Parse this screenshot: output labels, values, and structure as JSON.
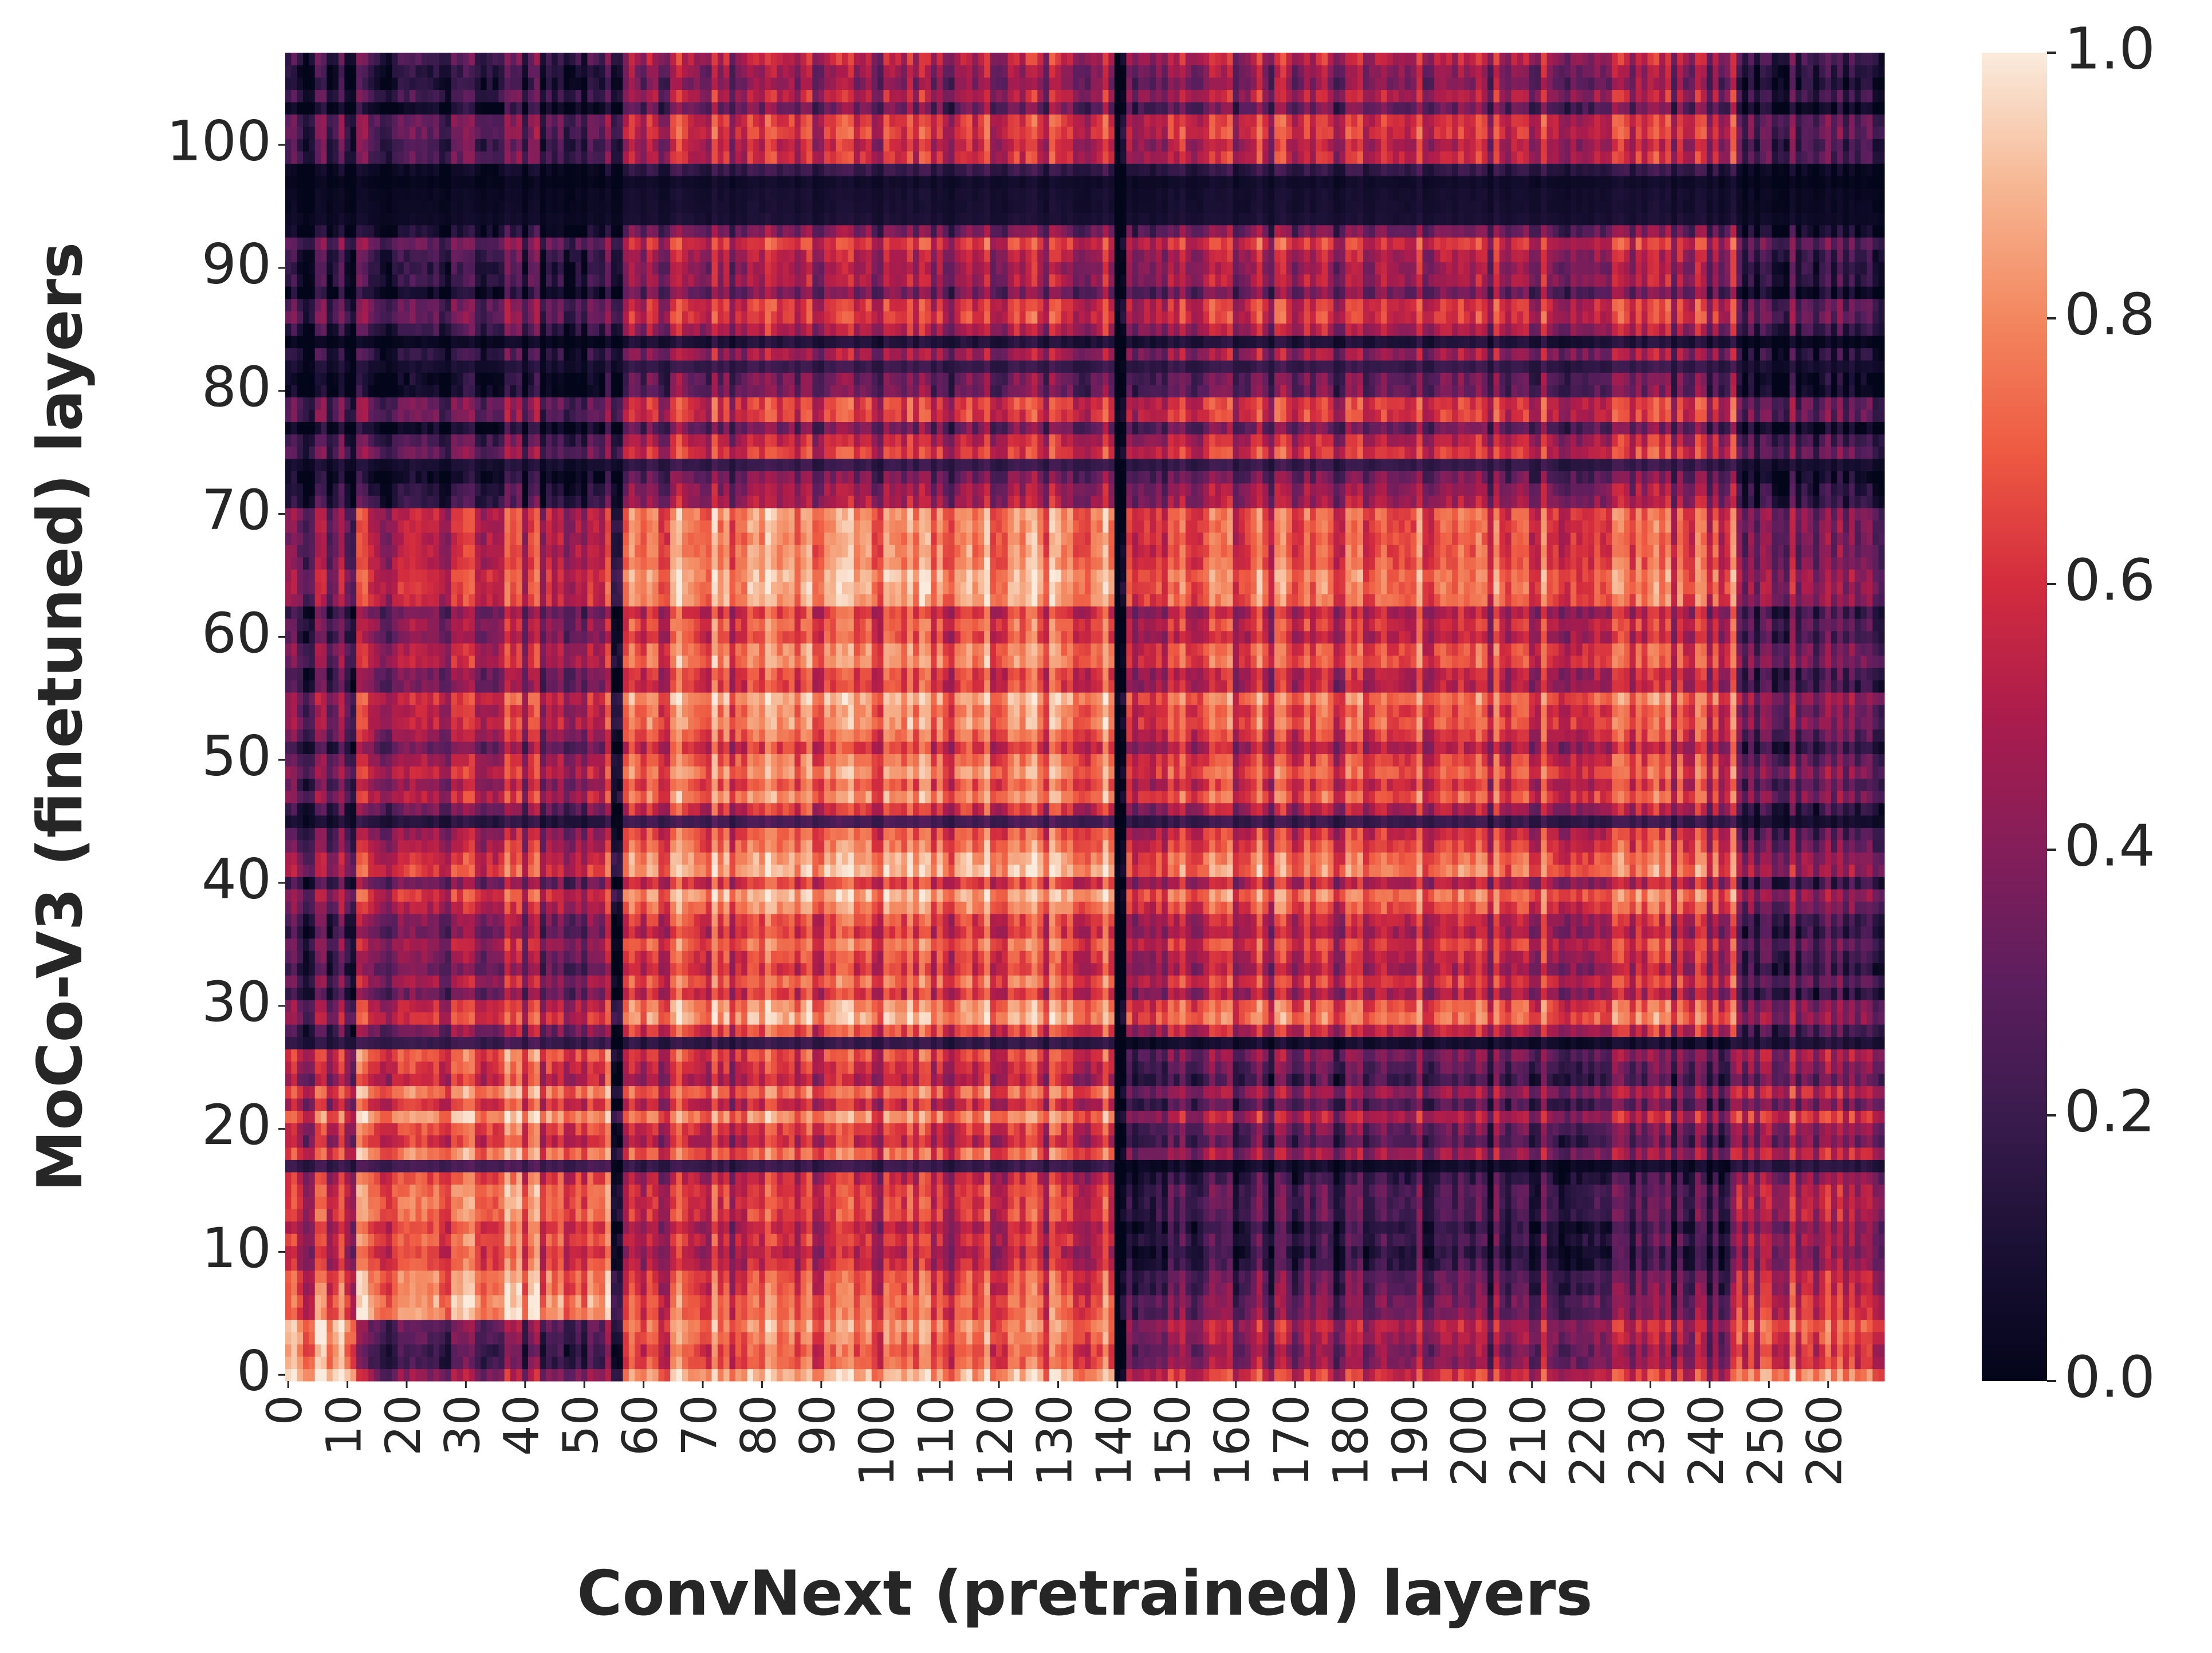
{
  "chart_data": {
    "type": "heatmap",
    "title": "",
    "xlabel": "ConvNext (pretrained) layers",
    "ylabel": "MoCo-V3 (finetuned) layers",
    "x_count": 270,
    "y_count": 108,
    "x_ticks": [
      0,
      10,
      20,
      30,
      40,
      50,
      60,
      70,
      80,
      90,
      100,
      110,
      120,
      130,
      140,
      150,
      160,
      170,
      180,
      190,
      200,
      210,
      220,
      230,
      240,
      250,
      260
    ],
    "y_ticks": [
      0,
      10,
      20,
      30,
      40,
      50,
      60,
      70,
      80,
      90,
      100
    ],
    "colorbar": {
      "min": 0.0,
      "max": 1.0,
      "ticks": [
        "0.0",
        "0.2",
        "0.4",
        "0.6",
        "0.8",
        "1.0"
      ],
      "colormap": "rocket"
    },
    "value_range": [
      0.0,
      1.0
    ],
    "pattern": {
      "column_regions": [
        {
          "x_range": [
            0,
            12
          ],
          "rows_0_4": 0.85,
          "rows_5_27": 0.55,
          "rows_28_70": 0.3,
          "rows_71_107": 0.12
        },
        {
          "x_range": [
            12,
            55
          ],
          "rows_0_4": 0.3,
          "rows_5_27": 0.72,
          "rows_28_70": 0.5,
          "rows_71_107": 0.2
        },
        {
          "x_range": [
            55,
            57
          ],
          "all_rows": 0.05
        },
        {
          "x_range": [
            57,
            140
          ],
          "rows_0_4": 0.72,
          "rows_5_17": 0.55,
          "rows_18_27": 0.62,
          "rows_28_70": 0.72,
          "rows_71_107": 0.45
        },
        {
          "x_range": [
            140,
            142
          ],
          "all_rows": 0.05
        },
        {
          "x_range": [
            142,
            245
          ],
          "rows_0_4": 0.45,
          "rows_5_17": 0.2,
          "rows_18_27": 0.35,
          "rows_28_70": 0.62,
          "rows_71_107": 0.45
        },
        {
          "x_range": [
            245,
            270
          ],
          "rows_0_4": 0.7,
          "rows_5_17": 0.5,
          "rows_28_70": 0.35,
          "rows_71_107": 0.2
        }
      ],
      "dark_rows": [
        17,
        27,
        45,
        74,
        82,
        84,
        94,
        95,
        96,
        97
      ]
    }
  }
}
